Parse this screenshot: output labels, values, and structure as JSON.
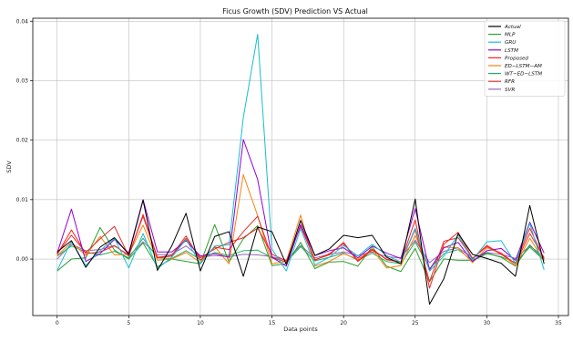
{
  "chart_data": {
    "type": "line",
    "title": "Ficus Growth (SDV) Prediction VS Actual",
    "xlabel": "Data points",
    "ylabel": "SDV",
    "xlim": [
      -1.7,
      35.7
    ],
    "ylim": [
      -0.0095,
      0.0405
    ],
    "xticks": [
      0,
      5,
      10,
      15,
      20,
      25,
      30,
      35
    ],
    "yticks": [
      0.0,
      0.01,
      0.02,
      0.03,
      0.04
    ],
    "ytick_labels": [
      "0.00",
      "0.01",
      "0.02",
      "0.03",
      "0.04"
    ],
    "grid": true,
    "legend_position": "top-right",
    "x": [
      0,
      1,
      2,
      3,
      4,
      5,
      6,
      7,
      8,
      9,
      10,
      11,
      12,
      13,
      14,
      15,
      16,
      17,
      18,
      19,
      20,
      21,
      22,
      23,
      24,
      25,
      26,
      27,
      28,
      29,
      30,
      31,
      32,
      33,
      34
    ],
    "series": [
      {
        "name": "Actual",
        "color": "#000000",
        "values": [
          0.0012,
          0.0031,
          -0.0014,
          0.002,
          0.0036,
          0.0008,
          0.0099,
          -0.0019,
          0.0022,
          0.0077,
          -0.002,
          0.0038,
          0.0046,
          -0.0029,
          0.0054,
          0.0046,
          -0.0009,
          0.0065,
          0.0006,
          0.0017,
          0.004,
          0.0036,
          0.004,
          0.0003,
          -0.0008,
          0.0101,
          -0.0076,
          -0.0033,
          0.0043,
          0.0008,
          0.0001,
          -0.0007,
          -0.0029,
          0.009,
          -0.0008
        ]
      },
      {
        "name": "MLP",
        "color": "#2ca02c",
        "values": [
          -0.002,
          0.0,
          0.0002,
          0.0053,
          0.0015,
          0.0,
          0.0027,
          -0.0013,
          0.0,
          -0.0004,
          -0.0008,
          0.0058,
          -0.0005,
          0.0034,
          0.0056,
          -0.0011,
          -0.0008,
          0.0028,
          -0.0016,
          -0.0005,
          -0.0004,
          -0.0012,
          0.0021,
          -0.0012,
          -0.0021,
          0.0018,
          -0.0038,
          0.0,
          -0.0002,
          -0.0002,
          0.001,
          0.0003,
          -0.0012,
          0.0024,
          -0.0002
        ]
      },
      {
        "name": "GRU",
        "color": "#17becf",
        "values": [
          -0.0019,
          0.003,
          -0.0011,
          0.0014,
          0.0035,
          -0.0015,
          0.0043,
          -0.0016,
          0.0003,
          0.0033,
          -0.0008,
          0.0022,
          0.0024,
          0.0238,
          0.0378,
          0.0017,
          -0.002,
          0.0051,
          -0.001,
          0.0003,
          0.0023,
          0.0005,
          0.0025,
          0.0006,
          -0.0005,
          0.0052,
          -0.002,
          0.0005,
          0.0041,
          -0.0002,
          0.0029,
          0.0031,
          -0.0007,
          0.006,
          -0.0018
        ]
      },
      {
        "name": "LSTM",
        "color": "#9400d3",
        "values": [
          0.001,
          0.0084,
          -0.0004,
          0.0009,
          0.0033,
          0.001,
          0.01,
          0.0012,
          0.0012,
          0.0031,
          0.0005,
          0.0009,
          0.0003,
          0.0201,
          0.0134,
          0.0003,
          -0.0012,
          0.0058,
          0.0006,
          0.0014,
          0.0019,
          0.0002,
          0.0022,
          0.001,
          0.0001,
          0.0085,
          -0.0018,
          0.0019,
          0.0028,
          -0.0004,
          0.0014,
          0.0018,
          -0.0002,
          0.0062,
          0.001
        ]
      },
      {
        "name": "Proposed",
        "color": "#ff2020",
        "values": [
          0.0008,
          0.0049,
          0.0009,
          0.0012,
          0.0022,
          0.0007,
          0.0072,
          0.0002,
          0.0005,
          0.0035,
          0.0002,
          0.0017,
          0.0028,
          0.0036,
          0.0052,
          0.0008,
          -0.0003,
          0.0055,
          -0.0001,
          0.0007,
          0.0028,
          -0.0003,
          0.0017,
          -0.0001,
          -0.0005,
          0.0066,
          -0.0049,
          0.0025,
          0.0045,
          0.0001,
          0.0023,
          0.0008,
          -0.0007,
          0.0052,
          0.0
        ]
      },
      {
        "name": "ED−LSTM−AM",
        "color": "#ff7f0e",
        "values": [
          0.0006,
          0.0028,
          0.0006,
          0.0038,
          0.0007,
          0.0008,
          0.0057,
          -0.0002,
          0.0,
          0.0011,
          -0.0006,
          0.0021,
          -0.0008,
          0.0142,
          0.0073,
          -0.0008,
          -0.0004,
          0.0074,
          -0.0012,
          -0.0004,
          0.0009,
          0.0,
          0.0016,
          -0.0015,
          -0.0011,
          0.004,
          -0.0018,
          0.002,
          0.0019,
          -0.0006,
          0.0019,
          0.0009,
          -0.0011,
          0.0035,
          -0.0003
        ]
      },
      {
        "name": "WT−ED−LSTM",
        "color": "#20b060",
        "values": [
          0.0005,
          0.0022,
          0.0012,
          0.0007,
          0.0013,
          0.0002,
          0.0035,
          0.0002,
          0.0001,
          0.0014,
          -0.0001,
          0.0011,
          0.0006,
          0.0014,
          0.0015,
          0.0002,
          -0.0005,
          0.0021,
          -0.0003,
          0.0003,
          0.001,
          -0.0002,
          0.001,
          -0.0004,
          -0.0008,
          0.0029,
          -0.0016,
          0.0009,
          0.0016,
          -0.0003,
          0.0009,
          0.0004,
          -0.0006,
          0.002,
          -0.0002
        ]
      },
      {
        "name": "RFR",
        "color": "#e0302a",
        "values": [
          0.0009,
          0.004,
          0.0011,
          0.0034,
          0.0055,
          0.0005,
          0.0075,
          0.0003,
          0.0006,
          0.0039,
          -0.0002,
          0.002,
          0.0016,
          0.0046,
          0.0072,
          0.0003,
          -0.0005,
          0.0056,
          -0.0002,
          0.0009,
          0.0026,
          -0.0004,
          0.0015,
          0.0,
          -0.0005,
          0.005,
          -0.0038,
          0.003,
          0.0036,
          0.0001,
          0.0021,
          0.001,
          -0.0008,
          0.0043,
          0.0002
        ]
      },
      {
        "name": "SVR",
        "color": "#9467bd",
        "values": [
          0.0,
          0.0025,
          0.0014,
          0.0016,
          0.0023,
          0.0005,
          0.0029,
          0.0007,
          0.0008,
          0.0022,
          0.0003,
          0.0006,
          0.0004,
          0.0008,
          0.0007,
          0.0004,
          -0.0002,
          0.0023,
          0.0002,
          0.0008,
          0.0012,
          0.0006,
          0.0012,
          0.0004,
          0.0002,
          0.0032,
          -0.0006,
          0.0013,
          0.0019,
          0.0002,
          0.0011,
          0.0008,
          0.0001,
          0.0022,
          0.0004
        ]
      }
    ]
  }
}
